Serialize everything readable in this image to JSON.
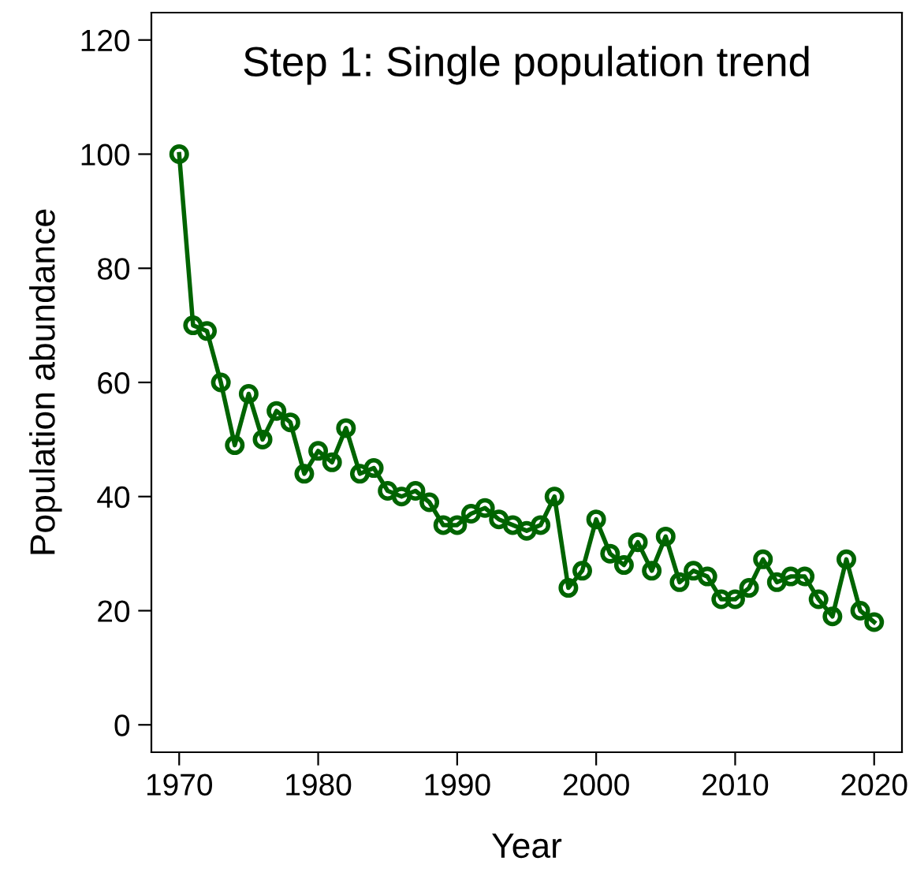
{
  "chart_data": {
    "type": "line",
    "title": "Step 1: Single population trend",
    "xlabel": "Year",
    "ylabel": "Population abundance",
    "x": [
      1970,
      1971,
      1972,
      1973,
      1974,
      1975,
      1976,
      1977,
      1978,
      1979,
      1980,
      1981,
      1982,
      1983,
      1984,
      1985,
      1986,
      1987,
      1988,
      1989,
      1990,
      1991,
      1992,
      1993,
      1994,
      1995,
      1996,
      1997,
      1998,
      1999,
      2000,
      2001,
      2002,
      2003,
      2004,
      2005,
      2006,
      2007,
      2008,
      2009,
      2010,
      2011,
      2012,
      2013,
      2014,
      2015,
      2016,
      2017,
      2018,
      2019,
      2020
    ],
    "series": [
      {
        "color": "#006400",
        "values": [
          100,
          70,
          69,
          60,
          49,
          58,
          50,
          55,
          53,
          44,
          48,
          46,
          52,
          44,
          45,
          41,
          40,
          41,
          39,
          35,
          35,
          37,
          38,
          36,
          35,
          34,
          35,
          40,
          24,
          27,
          36,
          30,
          28,
          32,
          27,
          33,
          25,
          27,
          26,
          22,
          22,
          24,
          29,
          25,
          26,
          26,
          22,
          19,
          29,
          20,
          18
        ]
      }
    ],
    "xlim": [
      1968,
      2022
    ],
    "ylim": [
      -4.8,
      124.8
    ],
    "xticks": [
      1970,
      1980,
      1990,
      2000,
      2010,
      2020
    ],
    "yticks": [
      0,
      20,
      40,
      60,
      80,
      100,
      120
    ],
    "marker": "circle",
    "line_style": "solid",
    "grid": false,
    "legend": false
  }
}
